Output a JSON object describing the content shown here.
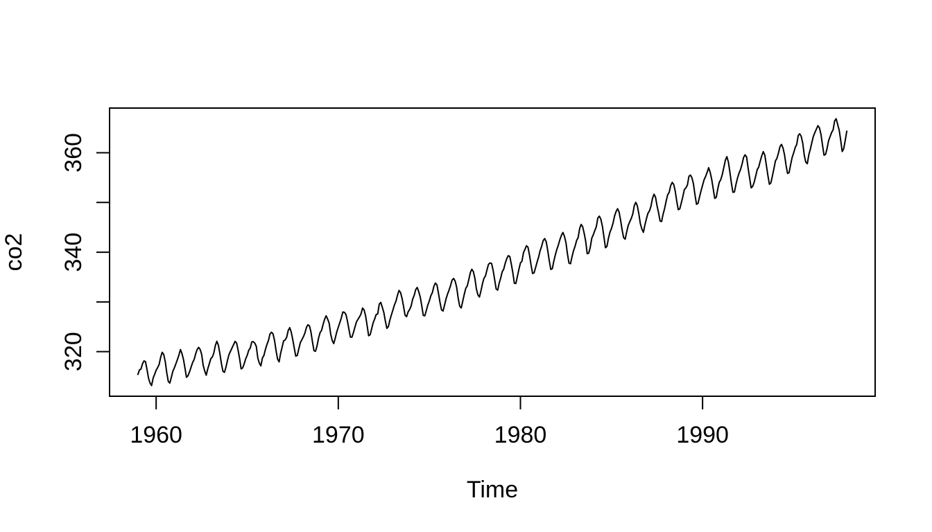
{
  "figure": {
    "background": "#ffffff",
    "foreground": "#000000"
  },
  "chart_data": {
    "type": "line",
    "title": "",
    "xlabel": "Time",
    "ylabel": "co2",
    "legend": "none",
    "grid": false,
    "line_color": "#000000",
    "xlim": [
      1957.443,
      1999.474
    ],
    "ylim": [
      311.03,
      368.99
    ],
    "x_ticks": [
      {
        "value": 1960,
        "label": "1960"
      },
      {
        "value": 1970,
        "label": "1970"
      },
      {
        "value": 1980,
        "label": "1980"
      },
      {
        "value": 1990,
        "label": "1990"
      }
    ],
    "y_ticks": [
      {
        "value": 320,
        "label": "320"
      },
      {
        "value": 330,
        "label": ""
      },
      {
        "value": 340,
        "label": "340"
      },
      {
        "value": 350,
        "label": ""
      },
      {
        "value": 360,
        "label": "360"
      }
    ],
    "series": [
      {
        "name": "co2",
        "start_year": 1959,
        "frequency": 12,
        "values_by_year": [
          [
            315.42,
            316.31,
            316.5,
            317.56,
            318.13,
            318.0,
            316.39,
            314.65,
            313.68,
            313.18,
            314.66,
            315.43
          ],
          [
            316.27,
            316.81,
            317.42,
            318.87,
            319.87,
            319.43,
            318.01,
            315.74,
            314.0,
            313.68,
            314.84,
            316.03
          ],
          [
            316.73,
            317.54,
            318.38,
            319.31,
            320.42,
            319.61,
            318.42,
            316.63,
            314.83,
            315.16,
            315.94,
            316.85
          ],
          [
            317.78,
            318.4,
            319.53,
            320.42,
            320.85,
            320.45,
            319.45,
            317.25,
            316.11,
            315.27,
            316.53,
            317.53
          ],
          [
            318.58,
            318.92,
            319.7,
            321.22,
            322.08,
            321.31,
            319.58,
            317.61,
            316.05,
            315.83,
            316.91,
            318.2
          ],
          [
            319.41,
            320.07,
            320.74,
            321.4,
            322.06,
            321.73,
            320.27,
            318.54,
            316.54,
            316.71,
            317.53,
            318.55
          ],
          [
            319.27,
            320.28,
            320.73,
            321.97,
            322.0,
            321.71,
            321.05,
            318.71,
            317.66,
            317.14,
            318.7,
            319.25
          ],
          [
            320.46,
            321.43,
            322.23,
            323.54,
            323.91,
            323.59,
            322.24,
            320.2,
            318.48,
            317.94,
            319.63,
            320.87
          ],
          [
            322.17,
            322.34,
            322.88,
            324.25,
            324.83,
            323.93,
            322.38,
            320.76,
            319.1,
            319.24,
            320.56,
            321.8
          ],
          [
            322.4,
            322.99,
            323.73,
            324.86,
            325.4,
            325.2,
            323.98,
            321.95,
            320.18,
            320.09,
            321.16,
            322.74
          ],
          [
            323.83,
            324.26,
            325.47,
            326.5,
            327.21,
            326.54,
            325.72,
            323.5,
            322.22,
            321.62,
            322.69,
            323.95
          ],
          [
            324.89,
            325.82,
            326.77,
            327.97,
            327.91,
            327.5,
            326.18,
            324.53,
            322.93,
            322.9,
            323.85,
            324.96
          ],
          [
            326.01,
            326.51,
            327.01,
            327.62,
            328.76,
            328.4,
            327.2,
            325.27,
            323.2,
            323.4,
            324.63,
            325.85
          ],
          [
            326.6,
            327.47,
            327.58,
            329.56,
            329.9,
            328.92,
            327.88,
            326.16,
            324.68,
            325.04,
            326.34,
            327.39
          ],
          [
            328.37,
            329.4,
            330.14,
            331.33,
            332.31,
            331.9,
            330.7,
            329.15,
            327.35,
            327.02,
            327.99,
            328.48
          ],
          [
            329.18,
            330.55,
            331.32,
            332.48,
            332.92,
            332.08,
            331.01,
            329.23,
            327.27,
            327.21,
            328.29,
            329.41
          ],
          [
            330.23,
            331.25,
            331.87,
            333.14,
            333.8,
            333.43,
            331.73,
            329.9,
            328.4,
            328.17,
            329.32,
            330.59
          ],
          [
            331.58,
            332.39,
            333.33,
            334.41,
            334.71,
            334.17,
            332.89,
            330.77,
            329.14,
            328.78,
            330.14,
            331.52
          ],
          [
            332.75,
            333.24,
            334.53,
            335.9,
            336.57,
            336.1,
            334.76,
            332.59,
            331.42,
            330.98,
            332.24,
            333.68
          ],
          [
            334.8,
            335.22,
            336.47,
            337.59,
            337.84,
            337.72,
            336.37,
            334.51,
            332.6,
            332.38,
            333.75,
            334.78
          ],
          [
            336.05,
            336.59,
            337.79,
            338.71,
            339.3,
            339.12,
            337.56,
            335.92,
            333.75,
            333.7,
            335.12,
            336.56
          ],
          [
            337.84,
            338.19,
            339.91,
            340.6,
            341.29,
            341.0,
            339.39,
            337.43,
            335.72,
            335.84,
            336.93,
            338.04
          ],
          [
            339.06,
            340.3,
            341.21,
            342.33,
            342.74,
            342.08,
            340.32,
            338.26,
            336.52,
            336.68,
            338.19,
            339.44
          ],
          [
            340.57,
            341.44,
            342.53,
            343.39,
            343.96,
            343.18,
            341.88,
            339.65,
            337.81,
            337.69,
            339.09,
            340.32
          ],
          [
            341.2,
            342.35,
            342.93,
            344.77,
            345.58,
            345.14,
            343.81,
            342.21,
            339.69,
            339.82,
            340.98,
            342.82
          ],
          [
            343.52,
            344.33,
            345.11,
            346.88,
            347.25,
            346.62,
            345.22,
            343.11,
            340.9,
            341.18,
            342.8,
            344.04
          ],
          [
            344.79,
            345.82,
            347.25,
            348.17,
            348.74,
            348.07,
            346.38,
            344.51,
            342.92,
            342.62,
            344.06,
            345.38
          ],
          [
            346.11,
            346.78,
            347.68,
            349.37,
            350.03,
            349.37,
            347.76,
            345.73,
            344.68,
            343.99,
            345.48,
            346.72
          ],
          [
            347.84,
            348.29,
            349.23,
            350.8,
            351.66,
            351.07,
            349.33,
            347.92,
            346.27,
            346.18,
            347.64,
            348.78
          ],
          [
            350.25,
            351.54,
            352.05,
            353.41,
            354.04,
            353.62,
            352.22,
            350.27,
            348.55,
            348.72,
            349.91,
            351.18
          ],
          [
            352.6,
            352.92,
            353.53,
            355.26,
            355.52,
            354.97,
            353.75,
            351.52,
            349.64,
            349.83,
            351.14,
            352.37
          ],
          [
            353.5,
            354.55,
            355.23,
            356.04,
            357.0,
            356.07,
            354.67,
            352.76,
            350.82,
            351.04,
            352.69,
            354.07
          ],
          [
            354.59,
            355.63,
            357.03,
            358.48,
            359.22,
            358.12,
            356.06,
            353.92,
            352.05,
            352.11,
            353.64,
            354.89
          ],
          [
            355.88,
            356.63,
            357.72,
            359.07,
            359.58,
            359.17,
            356.94,
            354.92,
            352.94,
            353.23,
            354.09,
            355.33
          ],
          [
            356.63,
            357.1,
            358.32,
            359.41,
            360.23,
            359.55,
            357.53,
            355.48,
            353.67,
            353.95,
            355.3,
            356.78
          ],
          [
            358.34,
            358.89,
            359.95,
            361.25,
            361.67,
            360.94,
            359.55,
            357.49,
            355.84,
            356.0,
            357.59,
            359.05
          ],
          [
            359.98,
            361.03,
            361.66,
            363.48,
            363.82,
            363.3,
            361.94,
            359.5,
            358.11,
            357.8,
            359.61,
            360.74
          ],
          [
            362.09,
            363.29,
            364.06,
            364.76,
            365.45,
            365.01,
            363.7,
            361.54,
            359.51,
            359.65,
            360.8,
            362.38
          ],
          [
            363.23,
            364.06,
            364.61,
            366.4,
            366.84,
            365.68,
            364.52,
            362.57,
            360.24,
            360.83,
            362.49,
            364.34
          ]
        ]
      }
    ]
  }
}
